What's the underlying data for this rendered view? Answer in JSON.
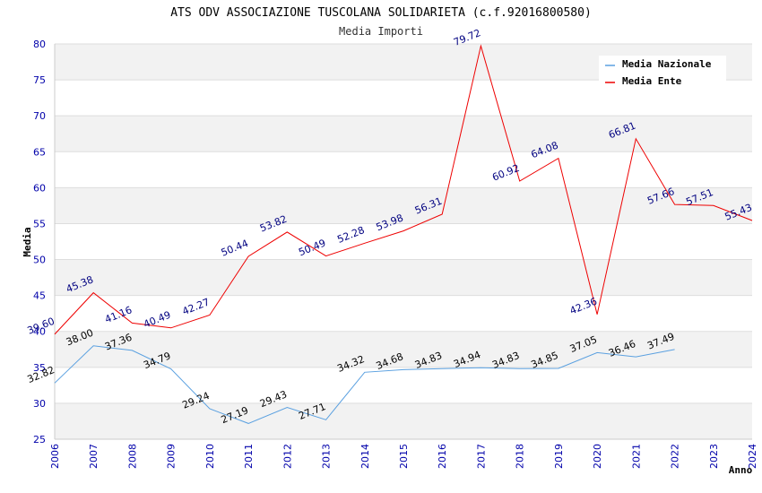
{
  "chart_data": {
    "type": "line",
    "title": "ATS ODV ASSOCIAZIONE TUSCOLANA SOLIDARIETA (c.f.92016800580)",
    "subtitle": "Media Importi",
    "xlabel": "Anno",
    "ylabel": "Media",
    "ylim": [
      25,
      80
    ],
    "yticks": [
      25,
      30,
      35,
      40,
      45,
      50,
      55,
      60,
      65,
      70,
      75,
      80
    ],
    "categories": [
      "2006",
      "2007",
      "2008",
      "2009",
      "2010",
      "2011",
      "2012",
      "2013",
      "2014",
      "2015",
      "2016",
      "2017",
      "2018",
      "2019",
      "2020",
      "2021",
      "2022",
      "2023",
      "2024"
    ],
    "series": [
      {
        "name": "Media Nazionale",
        "color": "#5aa0e0",
        "values": [
          32.82,
          38.0,
          37.36,
          34.79,
          29.24,
          27.19,
          29.43,
          27.71,
          34.32,
          34.68,
          34.83,
          34.94,
          34.83,
          34.85,
          37.05,
          36.46,
          37.49,
          null,
          null
        ],
        "labels": [
          "32.82",
          "38.00",
          "37.36",
          "34.79",
          "29.24",
          "27.19",
          "29.43",
          "27.71",
          "34.32",
          "34.68",
          "34.83",
          "34.94",
          "34.83",
          "34.85",
          "37.05",
          "36.46",
          "37.49",
          null,
          null
        ]
      },
      {
        "name": "Media Ente",
        "color": "#ee0000",
        "values": [
          39.6,
          45.38,
          41.16,
          40.49,
          42.27,
          50.44,
          53.82,
          50.49,
          52.28,
          53.98,
          56.31,
          79.72,
          60.92,
          64.08,
          42.36,
          66.81,
          57.66,
          57.51,
          55.43
        ],
        "labels": [
          "39.60",
          "45.38",
          "41.16",
          "40.49",
          "42.27",
          "50.44",
          "53.82",
          "50.49",
          "52.28",
          "53.98",
          "56.31",
          "79.72",
          "60.92",
          "64.08",
          "42.36",
          "66.81",
          "57.66",
          "57.51",
          "55.43"
        ]
      }
    ],
    "legend_position": "top-right"
  }
}
